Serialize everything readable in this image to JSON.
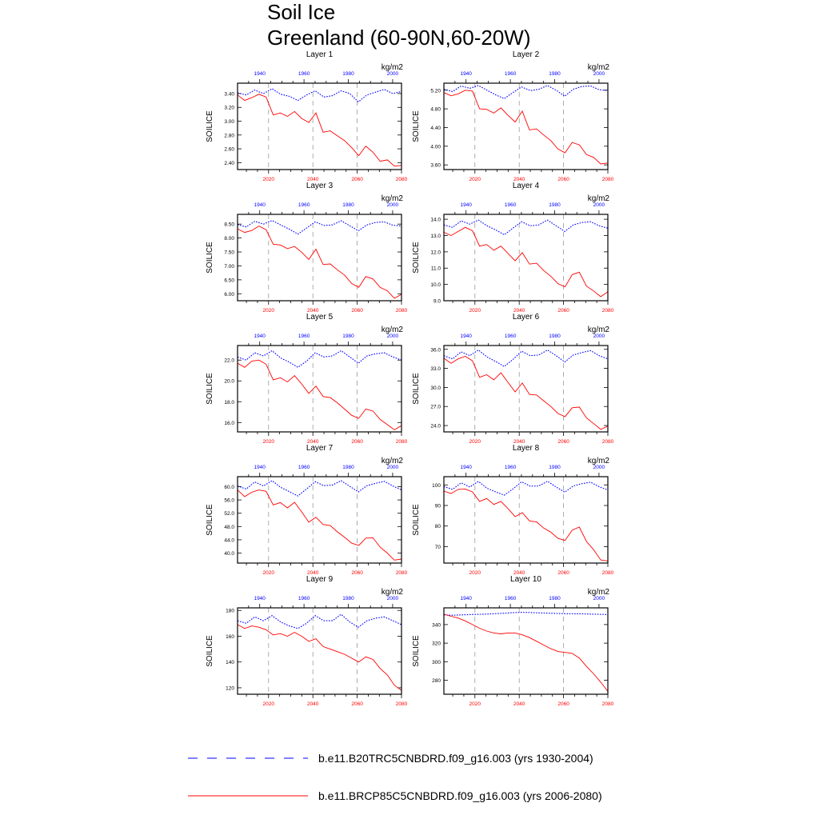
{
  "title": "Soil Ice",
  "subtitle": "Greenland (60-90N,60-20W)",
  "legend": [
    {
      "label": "b.e11.B20TRC5CNBDRD.f09_g16.003 (yrs 1930-2004)",
      "color": "#0000ff",
      "style": "dashed"
    },
    {
      "label": "b.e11.BRCP85C5CNBDRD.f09_g16.003 (yrs 2006-2080)",
      "color": "#ff0000",
      "style": "solid"
    }
  ],
  "chart_data": [
    {
      "type": "line",
      "title": "Layer 1",
      "units": "kg/m2",
      "ylabel": "SOILICE",
      "ylim": [
        2.3,
        3.55
      ],
      "yticks": [
        "3.40",
        "3.20",
        "3.00",
        "2.80",
        "2.60",
        "2.40"
      ],
      "x_bottom_ticks": [
        "2020",
        "2040",
        "2060",
        "2080"
      ],
      "x_top_ticks": [
        "1940",
        "1960",
        "1980",
        "2000"
      ],
      "series": [
        {
          "x_range": [
            1930,
            2004
          ],
          "values": [
            3.41,
            3.38,
            3.45,
            3.4,
            3.47,
            3.39,
            3.36,
            3.3,
            3.38,
            3.44,
            3.35,
            3.37,
            3.44,
            3.4,
            3.28,
            3.38,
            3.42,
            3.46,
            3.4,
            3.43
          ],
          "color": "#0000ff"
        },
        {
          "x_range": [
            2006,
            2080
          ],
          "values": [
            3.38,
            3.3,
            3.34,
            3.39,
            3.35,
            3.09,
            3.12,
            3.07,
            3.14,
            3.04,
            2.98,
            3.12,
            2.84,
            2.86,
            2.79,
            2.72,
            2.62,
            2.5,
            2.64,
            2.55,
            2.42,
            2.44,
            2.35,
            2.36
          ],
          "color": "#ff0000"
        }
      ]
    },
    {
      "type": "line",
      "title": "Layer 2",
      "units": "kg/m2",
      "ylabel": "SOILICE",
      "ylim": [
        3.5,
        5.35
      ],
      "yticks": [
        "5.20",
        "4.80",
        "4.40",
        "4.00",
        "3.60"
      ],
      "x_bottom_ticks": [
        "2020",
        "2040",
        "2060",
        "2080"
      ],
      "x_top_ticks": [
        "1940",
        "1960",
        "1980",
        "2000"
      ],
      "series": [
        {
          "x_range": [
            1930,
            2004
          ],
          "values": [
            5.22,
            5.17,
            5.29,
            5.24,
            5.3,
            5.2,
            5.1,
            5.02,
            5.15,
            5.27,
            5.19,
            5.22,
            5.3,
            5.2,
            5.07,
            5.22,
            5.28,
            5.29,
            5.21,
            5.19
          ],
          "color": "#0000ff"
        },
        {
          "x_range": [
            2006,
            2080
          ],
          "values": [
            5.15,
            5.08,
            5.12,
            5.2,
            5.18,
            4.8,
            4.79,
            4.71,
            4.82,
            4.66,
            4.52,
            4.75,
            4.35,
            4.37,
            4.24,
            4.12,
            3.94,
            3.86,
            4.08,
            4.03,
            3.82,
            3.76,
            3.62,
            3.64
          ],
          "color": "#ff0000"
        }
      ]
    },
    {
      "type": "line",
      "title": "Layer 3",
      "units": "kg/m2",
      "ylabel": "SOILICE",
      "ylim": [
        5.75,
        8.85
      ],
      "yticks": [
        "8.50",
        "8.00",
        "7.50",
        "7.00",
        "6.50",
        "6.00"
      ],
      "x_bottom_ticks": [
        "2020",
        "2040",
        "2060",
        "2080"
      ],
      "x_top_ticks": [
        "1940",
        "1960",
        "1980",
        "2000"
      ],
      "series": [
        {
          "x_range": [
            1930,
            2004
          ],
          "values": [
            8.48,
            8.4,
            8.6,
            8.5,
            8.63,
            8.47,
            8.32,
            8.14,
            8.36,
            8.58,
            8.45,
            8.47,
            8.62,
            8.44,
            8.26,
            8.47,
            8.56,
            8.58,
            8.46,
            8.43
          ],
          "color": "#0000ff"
        },
        {
          "x_range": [
            2006,
            2080
          ],
          "values": [
            8.33,
            8.2,
            8.27,
            8.43,
            8.3,
            7.78,
            7.75,
            7.62,
            7.7,
            7.49,
            7.23,
            7.6,
            7.05,
            7.07,
            6.86,
            6.67,
            6.37,
            6.23,
            6.62,
            6.53,
            6.23,
            6.11,
            5.84,
            5.98
          ],
          "color": "#ff0000"
        }
      ]
    },
    {
      "type": "line",
      "title": "Layer 4",
      "units": "kg/m2",
      "ylabel": "SOILICE",
      "ylim": [
        9.0,
        14.3
      ],
      "yticks": [
        "14.0",
        "13.0",
        "12.0",
        "11.0",
        "10.0",
        "9.0"
      ],
      "x_bottom_ticks": [
        "2020",
        "2040",
        "2060",
        "2080"
      ],
      "x_top_ticks": [
        "1940",
        "1960",
        "1980",
        "2000"
      ],
      "series": [
        {
          "x_range": [
            1930,
            2004
          ],
          "values": [
            13.65,
            13.5,
            13.9,
            13.7,
            13.95,
            13.6,
            13.35,
            13.05,
            13.45,
            13.85,
            13.6,
            13.65,
            13.95,
            13.6,
            13.25,
            13.65,
            13.8,
            13.85,
            13.6,
            13.45
          ],
          "color": "#0000ff"
        },
        {
          "x_range": [
            2006,
            2080
          ],
          "values": [
            13.2,
            13.0,
            13.25,
            13.5,
            13.3,
            12.35,
            12.45,
            12.1,
            12.35,
            11.9,
            11.45,
            11.95,
            11.25,
            11.3,
            10.85,
            10.5,
            10.05,
            9.85,
            10.6,
            10.75,
            9.9,
            9.6,
            9.25,
            9.55
          ],
          "color": "#ff0000"
        }
      ]
    },
    {
      "type": "line",
      "title": "Layer 5",
      "units": "kg/m2",
      "ylabel": "SOILICE",
      "ylim": [
        15.1,
        23.4
      ],
      "yticks": [
        "22.0",
        "20.0",
        "18.0",
        "16.0"
      ],
      "x_bottom_ticks": [
        "2020",
        "2040",
        "2060",
        "2080"
      ],
      "x_top_ticks": [
        "1940",
        "1960",
        "1980",
        "2000"
      ],
      "series": [
        {
          "x_range": [
            1930,
            2004
          ],
          "values": [
            22.3,
            22.0,
            22.7,
            22.4,
            22.9,
            22.2,
            21.8,
            21.3,
            21.9,
            22.7,
            22.3,
            22.4,
            22.9,
            22.3,
            21.7,
            22.4,
            22.6,
            22.7,
            22.3,
            22.0
          ],
          "color": "#0000ff"
        },
        {
          "x_range": [
            2006,
            2080
          ],
          "values": [
            21.7,
            21.3,
            21.9,
            22.0,
            21.6,
            20.1,
            20.3,
            19.9,
            20.5,
            19.7,
            18.8,
            19.5,
            18.5,
            18.4,
            17.9,
            17.3,
            16.7,
            16.4,
            17.3,
            17.1,
            16.3,
            15.8,
            15.3,
            15.7
          ],
          "color": "#ff0000"
        }
      ]
    },
    {
      "type": "line",
      "title": "Layer 6",
      "units": "kg/m2",
      "ylabel": "SOILICE",
      "ylim": [
        23.0,
        36.6
      ],
      "yticks": [
        "36.0",
        "33.0",
        "30.0",
        "27.0",
        "24.0"
      ],
      "x_bottom_ticks": [
        "2020",
        "2040",
        "2060",
        "2080"
      ],
      "x_top_ticks": [
        "1940",
        "1960",
        "1980",
        "2000"
      ],
      "series": [
        {
          "x_range": [
            1930,
            2004
          ],
          "values": [
            35.0,
            34.5,
            35.6,
            35.0,
            35.9,
            34.8,
            34.1,
            33.3,
            34.4,
            35.7,
            35.0,
            35.1,
            35.9,
            35.0,
            34.0,
            35.1,
            35.5,
            35.8,
            35.0,
            34.5
          ],
          "color": "#0000ff"
        },
        {
          "x_range": [
            2006,
            2080
          ],
          "values": [
            34.6,
            33.8,
            34.5,
            34.9,
            34.2,
            31.6,
            32.0,
            31.2,
            32.3,
            30.8,
            29.3,
            30.7,
            28.9,
            28.8,
            27.9,
            27.0,
            25.9,
            25.4,
            26.8,
            26.9,
            25.2,
            24.3,
            23.4,
            23.9
          ],
          "color": "#ff0000"
        }
      ]
    },
    {
      "type": "line",
      "title": "Layer 7",
      "units": "kg/m2",
      "ylabel": "SOILICE",
      "ylim": [
        37.0,
        63.0
      ],
      "yticks": [
        "60.0",
        "56.0",
        "52.0",
        "48.0",
        "44.0",
        "40.0"
      ],
      "x_bottom_ticks": [
        "2020",
        "2040",
        "2060",
        "2080"
      ],
      "x_top_ticks": [
        "1940",
        "1960",
        "1980",
        "2000"
      ],
      "series": [
        {
          "x_range": [
            1930,
            2004
          ],
          "values": [
            60.2,
            59.3,
            61.4,
            60.2,
            61.8,
            59.8,
            58.5,
            57.2,
            59.3,
            61.5,
            60.3,
            60.5,
            61.8,
            60.1,
            58.4,
            60.3,
            61.0,
            61.6,
            60.2,
            59.0
          ],
          "color": "#0000ff"
        },
        {
          "x_range": [
            2006,
            2080
          ],
          "values": [
            59.0,
            57.0,
            58.3,
            59.0,
            58.6,
            54.5,
            55.2,
            53.6,
            55.3,
            52.4,
            49.3,
            50.8,
            48.6,
            48.3,
            46.4,
            44.8,
            43.0,
            42.3,
            44.5,
            44.6,
            41.8,
            40.0,
            37.9,
            38.2
          ],
          "color": "#ff0000"
        }
      ]
    },
    {
      "type": "line",
      "title": "Layer 8",
      "units": "kg/m2",
      "ylabel": "SOILICE",
      "ylim": [
        62.0,
        104.0
      ],
      "yticks": [
        "100",
        "90",
        "80",
        "70"
      ],
      "x_bottom_ticks": [
        "2020",
        "2040",
        "2060",
        "2080"
      ],
      "x_top_ticks": [
        "1940",
        "1960",
        "1980",
        "2000"
      ],
      "series": [
        {
          "x_range": [
            1930,
            2004
          ],
          "values": [
            99.2,
            97.8,
            101.0,
            99.0,
            101.7,
            98.4,
            96.6,
            95.0,
            98.0,
            101.5,
            99.4,
            99.5,
            101.8,
            99.0,
            96.5,
            99.5,
            100.6,
            101.3,
            99.1,
            97.5
          ],
          "color": "#0000ff"
        },
        {
          "x_range": [
            2006,
            2080
          ],
          "values": [
            97.0,
            95.8,
            97.8,
            98.0,
            96.6,
            92.0,
            93.4,
            90.5,
            92.0,
            88.5,
            84.5,
            86.5,
            82.5,
            82.0,
            79.0,
            77.0,
            74.0,
            73.0,
            78.0,
            79.5,
            72.5,
            68.5,
            63.5,
            63.0
          ],
          "color": "#ff0000"
        }
      ]
    },
    {
      "type": "line",
      "title": "Layer 9",
      "units": "kg/m2",
      "ylabel": "SOILICE",
      "ylim": [
        115.0,
        182.0
      ],
      "yticks": [
        "180",
        "160",
        "140",
        "120"
      ],
      "x_bottom_ticks": [
        "2020",
        "2040",
        "2060",
        "2080"
      ],
      "x_top_ticks": [
        "1940",
        "1960",
        "1980",
        "2000"
      ],
      "series": [
        {
          "x_range": [
            1930,
            2004
          ],
          "values": [
            172,
            170,
            175,
            172,
            176,
            171,
            168,
            166,
            170,
            176,
            172,
            172,
            177,
            171,
            167,
            172,
            174,
            175,
            172,
            169
          ],
          "color": "#0000ff"
        },
        {
          "x_range": [
            2006,
            2080
          ],
          "values": [
            169,
            166,
            168,
            167,
            165,
            161,
            162,
            160,
            163,
            160,
            156,
            158,
            152,
            150,
            148,
            146,
            143,
            140,
            144,
            142,
            135,
            130,
            122,
            118
          ],
          "color": "#ff0000"
        }
      ]
    },
    {
      "type": "line",
      "title": "Layer 10",
      "units": "kg/m2",
      "ylabel": "SOILICE",
      "ylim": [
        265.0,
        358.0
      ],
      "yticks": [
        "340",
        "320",
        "300",
        "280"
      ],
      "x_bottom_ticks": [
        "2020",
        "2040",
        "2060",
        "2080"
      ],
      "x_top_ticks": [
        "1940",
        "1960",
        "1980",
        "2000"
      ],
      "series": [
        {
          "x_range": [
            1930,
            2004
          ],
          "values": [
            350.5,
            350.0,
            350.4,
            350.8,
            351.0,
            351.3,
            351.8,
            352.2,
            352.8,
            353.2,
            353.0,
            352.6,
            352.3,
            352.0,
            351.7,
            351.6,
            351.5,
            351.3,
            351.0,
            350.8
          ],
          "color": "#0000ff"
        },
        {
          "x_range": [
            2006,
            2080
          ],
          "values": [
            351,
            349,
            347,
            344,
            340,
            336,
            333,
            331,
            330,
            331,
            331,
            329,
            326,
            322,
            318,
            314,
            311,
            310,
            309,
            304,
            295,
            287,
            278,
            268
          ],
          "color": "#ff0000"
        }
      ]
    }
  ]
}
